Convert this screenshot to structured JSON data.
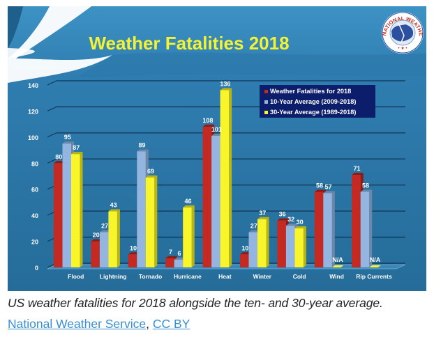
{
  "chart_data": {
    "type": "bar",
    "title": "Weather Fatalities 2018",
    "xlabel": "",
    "ylabel": "",
    "ylim": [
      0,
      140
    ],
    "yticks": [
      0,
      20,
      40,
      60,
      80,
      100,
      120,
      140
    ],
    "grid": true,
    "legend_position": "top-right",
    "categories": [
      "Flood",
      "Lightning",
      "Tornado",
      "Hurricane",
      "Heat",
      "Winter",
      "Cold",
      "Wind",
      "Rip Currents"
    ],
    "series": [
      {
        "name": "Weather Fatalities for 2018",
        "color": "#c42a22",
        "values": [
          80,
          20,
          10,
          7,
          108,
          10,
          36,
          58,
          71
        ]
      },
      {
        "name": "10-Year Average (2009-2018)",
        "color": "#93b5e0",
        "values": [
          95,
          27,
          89,
          6,
          101,
          27,
          32,
          57,
          58
        ]
      },
      {
        "name": "30-Year Average (1989-2018)",
        "color": "#f8f52a",
        "values": [
          87,
          43,
          69,
          46,
          136,
          37,
          30,
          null,
          null
        ]
      }
    ],
    "missing_label": "N/A"
  },
  "figure": {
    "logo_text": "NATIONAL WEATHER SERVICE",
    "background_color": "#2a6e9c",
    "title_color": "#f5f232"
  },
  "caption": "US weather fatalities for 2018 alongside the ten- and 30-year average.",
  "credit": {
    "source_link": "National Weather Service",
    "separator": ", ",
    "license_link": "CC BY"
  }
}
